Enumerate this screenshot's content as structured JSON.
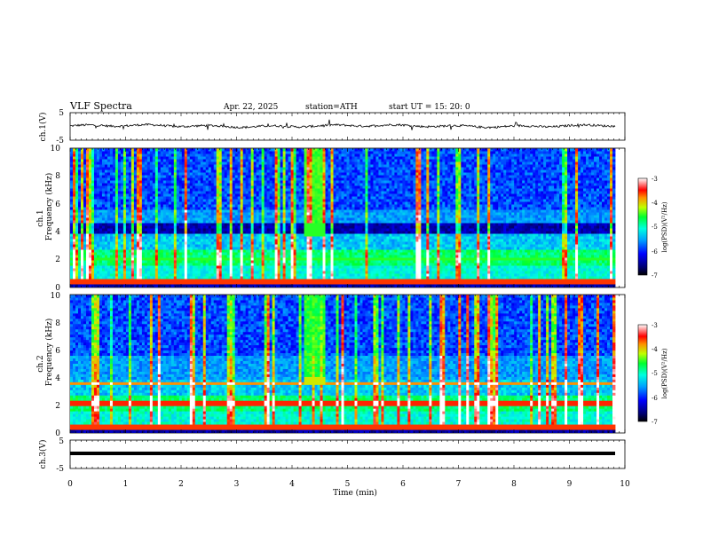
{
  "header": {
    "title": "VLF  Spectra",
    "date": "Apr. 22, 2025",
    "station": "station=ATH",
    "start_ut": "start  UT  =    15: 20: 0"
  },
  "chart_data": [
    {
      "type": "line",
      "name": "ch1-waveform",
      "ylabel": "ch.1(V)",
      "ylim": [
        -5,
        5
      ],
      "yticks": [
        "5",
        "-5"
      ],
      "xlim": [
        0,
        10
      ]
    },
    {
      "type": "heatmap",
      "name": "ch1-spectrogram",
      "ylabel_channel": "ch.1",
      "ylabel": "Frequency  (kHz)",
      "ylim": [
        0,
        10
      ],
      "yticks": [
        "0",
        "2",
        "4",
        "6",
        "8",
        "10"
      ],
      "xlim": [
        0,
        9.8
      ],
      "colorbar": {
        "label": "log(PSD)(V²/Hz)",
        "range": [
          -7,
          -3
        ],
        "ticks": [
          "-3",
          "-4",
          "-5",
          "-6",
          "-7"
        ]
      }
    },
    {
      "type": "heatmap",
      "name": "ch2-spectrogram",
      "ylabel_channel": "ch.2",
      "ylabel": "Frequency  (kHz)",
      "ylim": [
        0,
        10
      ],
      "yticks": [
        "0",
        "2",
        "4",
        "6",
        "8",
        "10"
      ],
      "xlim": [
        0,
        9.8
      ],
      "colorbar": {
        "label": "log(PSD)(V²/Hz)",
        "range": [
          -7,
          -3
        ],
        "ticks": [
          "-3",
          "-4",
          "-5",
          "-6",
          "-7"
        ]
      }
    },
    {
      "type": "line",
      "name": "ch3-waveform",
      "ylabel": "ch.3(V)",
      "ylim": [
        -5,
        5
      ],
      "yticks": [
        "5",
        "-5"
      ],
      "xlim": [
        0,
        10
      ],
      "xlabel": "Time  (min)",
      "xticks": [
        "0",
        "1",
        "2",
        "3",
        "4",
        "5",
        "6",
        "7",
        "8",
        "9",
        "10"
      ]
    }
  ]
}
